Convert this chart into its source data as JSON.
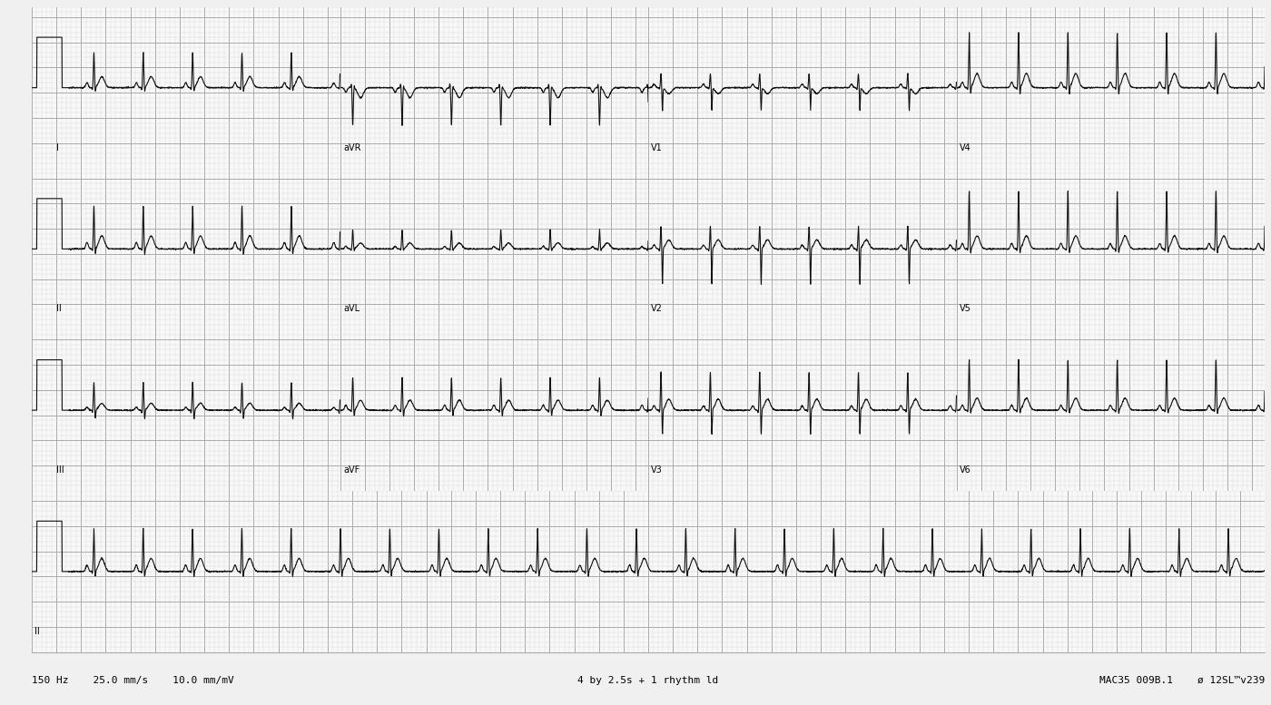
{
  "bg_color": "#f0f0f0",
  "paper_color": "#f8f8f8",
  "grid_major_color": "#aaaaaa",
  "grid_minor_color": "#d8d8d8",
  "line_color": "#111111",
  "line_width": 0.8,
  "fig_width": 14.0,
  "fig_height": 7.77,
  "dpi": 100,
  "row_labels": [
    [
      "I",
      "aVR",
      "V1",
      "V4"
    ],
    [
      "II",
      "aVL",
      "V2",
      "V5"
    ],
    [
      "III",
      "aVF",
      "V3",
      "V6"
    ],
    [
      "II",
      "",
      "",
      ""
    ]
  ],
  "footer_left": "150 Hz    25.0 mm/s    10.0 mm/mV",
  "footer_center": "4 by 2.5s + 1 rhythm ld",
  "footer_right": "MAC35 009B.1    ø 12SL™v239",
  "sample_rate": 500,
  "duration_per_lead": 2.5,
  "rhythm_duration": 10.0,
  "heart_rate": 150,
  "label_fontsize": 7,
  "footer_fontsize": 8
}
